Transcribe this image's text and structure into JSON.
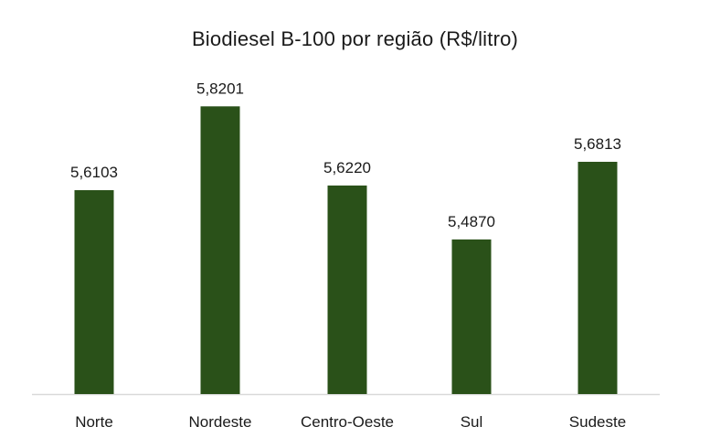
{
  "chart_data": {
    "type": "bar",
    "title": "Biodiesel B-100 por região (R$/litro)",
    "categories": [
      "Norte",
      "Nordeste",
      "Centro-Oeste",
      "Sul",
      "Sudeste"
    ],
    "values": [
      5.6103,
      5.8201,
      5.622,
      5.487,
      5.6813
    ],
    "data_labels": [
      "5,6103",
      "5,8201",
      "5,6220",
      "5,4870",
      "5,6813"
    ],
    "xlabel": "",
    "ylabel": "",
    "y_axis_visible": false,
    "grid": false,
    "legend": "none",
    "bar_color": "#2a5119",
    "axis_color": "#d9d9d9"
  }
}
